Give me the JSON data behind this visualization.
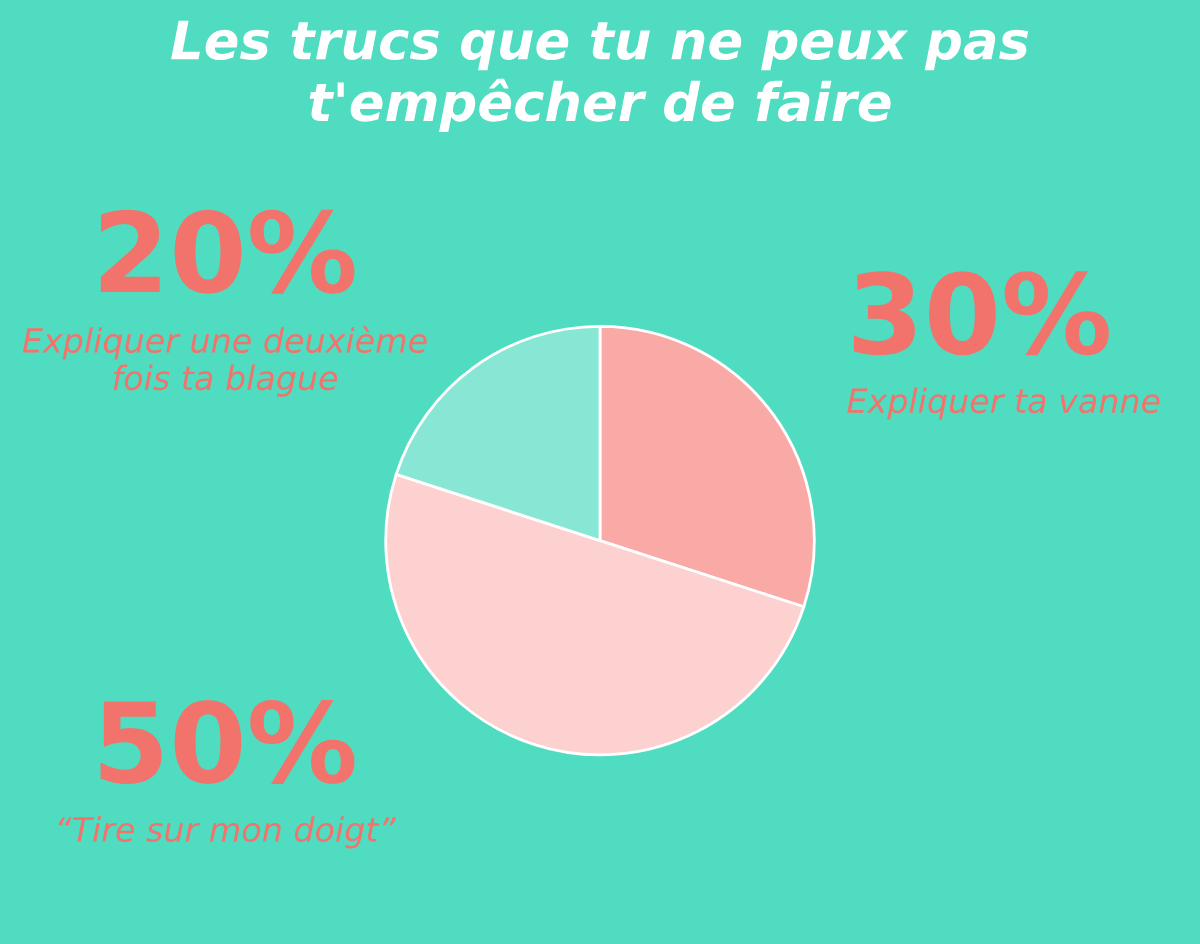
{
  "chart_data": {
    "type": "pie",
    "title": "Les trucs que tu ne peux pas\nt'empêcher de faire",
    "categories": [
      "Expliquer ta vanne",
      "“Tire sur mon doigt”",
      "Expliquer une deuxième\nfois ta blague"
    ],
    "values": [
      30,
      50,
      20
    ],
    "colors": [
      "#f9aaa6",
      "#fcd1cf",
      "#88e6d4"
    ],
    "value_labels": [
      "30%",
      "50%",
      "20%"
    ],
    "legend": false
  }
}
